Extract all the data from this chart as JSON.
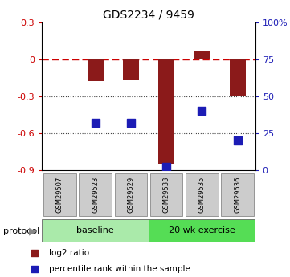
{
  "title": "GDS2234 / 9459",
  "samples": [
    "GSM29507",
    "GSM29523",
    "GSM29529",
    "GSM29533",
    "GSM29535",
    "GSM29536"
  ],
  "log2_ratio": [
    0.0,
    -0.18,
    -0.17,
    -0.85,
    0.07,
    -0.3
  ],
  "percentile_rank": [
    null,
    32,
    32,
    2,
    40,
    20
  ],
  "ylim_left": [
    -0.9,
    0.3
  ],
  "ylim_right": [
    0,
    100
  ],
  "yticks_left": [
    -0.9,
    -0.6,
    -0.3,
    0.0,
    0.3
  ],
  "ytick_labels_left": [
    "-0.9",
    "-0.6",
    "-0.3",
    "0",
    "0.3"
  ],
  "yticks_right": [
    0,
    25,
    50,
    75,
    100
  ],
  "ytick_labels_right": [
    "0",
    "25",
    "50",
    "75",
    "100%"
  ],
  "bar_color": "#8B1A1A",
  "dot_color": "#1C1CB5",
  "dashed_line_color": "#CC0000",
  "dotted_line_color": "#444444",
  "group_baseline_color": "#AAEAAA",
  "group_exercise_color": "#55DD55",
  "sample_box_color": "#CCCCCC",
  "sample_box_edge": "#888888",
  "legend_items": [
    {
      "label": "log2 ratio",
      "color": "#8B1A1A"
    },
    {
      "label": "percentile rank within the sample",
      "color": "#1C1CB5"
    }
  ],
  "bar_width": 0.45,
  "dot_size": 55
}
